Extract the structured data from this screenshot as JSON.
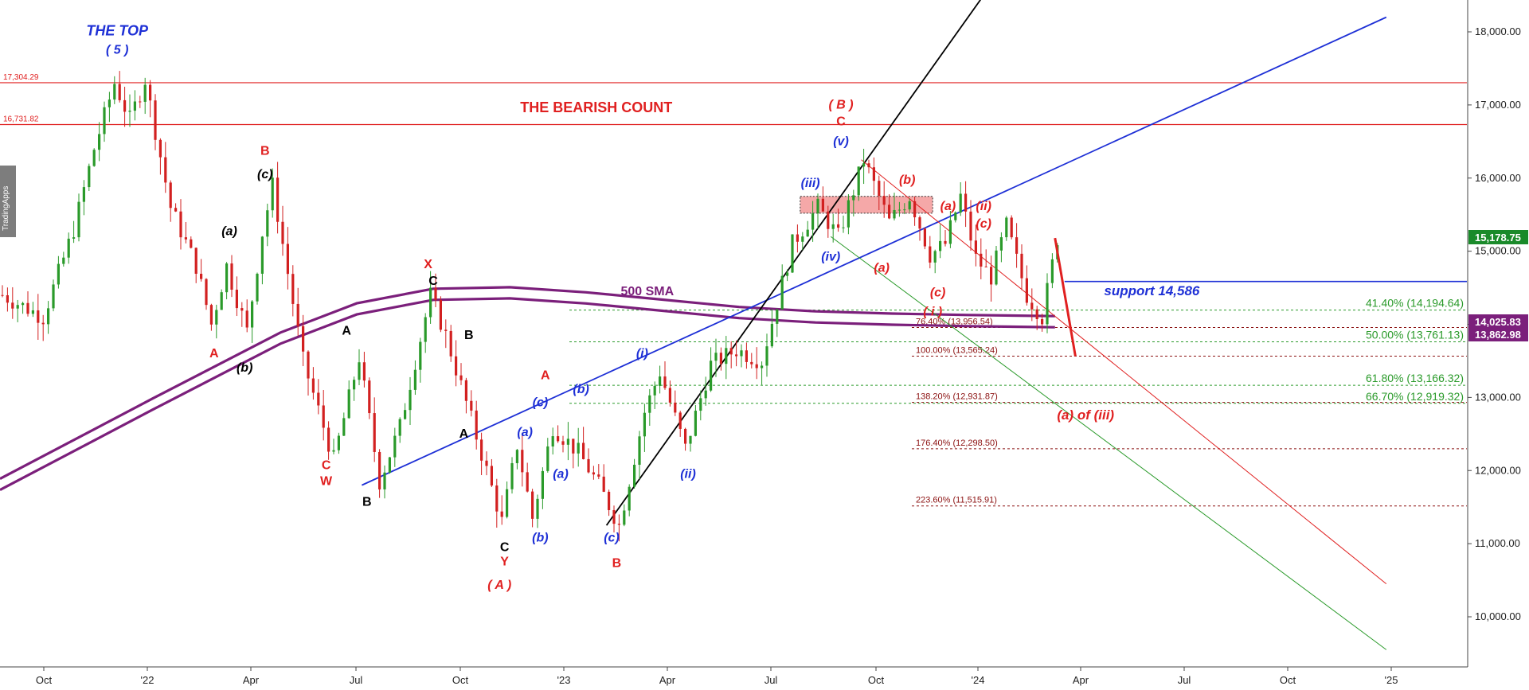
{
  "watermark": "TradingApps",
  "chart_data": {
    "type": "candlestick",
    "ylim": [
      9200,
      18400
    ],
    "y_ticks": [
      "10,000.00",
      "11,000.00",
      "12,000.00",
      "13,000.00",
      "14,000.00",
      "15,000.00",
      "16,000.00",
      "17,000.00",
      "18,000.00"
    ],
    "x_ticks": [
      "Oct",
      "'22",
      "Apr",
      "Jul",
      "Oct",
      "'23",
      "Apr",
      "Jul",
      "Oct",
      "'24",
      "Apr",
      "Jul",
      "Oct",
      "'25"
    ],
    "price_badges": [
      {
        "value": "15,178.75",
        "color": "#1a8a2a"
      },
      {
        "value": "14,025.83",
        "color": "#7b1f7b"
      },
      {
        "value": "13,862.98",
        "color": "#7b1f7b"
      }
    ],
    "candle_path": [
      [
        0,
        14400
      ],
      [
        8,
        14100
      ],
      [
        14,
        15300
      ],
      [
        18,
        16400
      ],
      [
        22,
        17300
      ],
      [
        25,
        16800
      ],
      [
        28,
        17350
      ],
      [
        33,
        15600
      ],
      [
        38,
        14800
      ],
      [
        41,
        14000
      ],
      [
        44,
        14800
      ],
      [
        48,
        13900
      ],
      [
        51,
        15250
      ],
      [
        53,
        15900
      ],
      [
        59,
        13500
      ],
      [
        65,
        12150
      ],
      [
        70,
        13550
      ],
      [
        74,
        11850
      ],
      [
        78,
        12600
      ],
      [
        84,
        14400
      ],
      [
        87,
        13850
      ],
      [
        92,
        12700
      ],
      [
        98,
        11300
      ],
      [
        101,
        12350
      ],
      [
        104,
        11350
      ],
      [
        108,
        12600
      ],
      [
        113,
        12250
      ],
      [
        117,
        11800
      ],
      [
        121,
        11250
      ],
      [
        126,
        12800
      ],
      [
        129,
        13350
      ],
      [
        134,
        12300
      ],
      [
        139,
        13450
      ],
      [
        144,
        13650
      ],
      [
        149,
        13500
      ],
      [
        155,
        15100
      ],
      [
        160,
        15600
      ],
      [
        164,
        15200
      ],
      [
        169,
        16250
      ],
      [
        174,
        15400
      ],
      [
        178,
        15750
      ],
      [
        182,
        14950
      ],
      [
        185,
        15100
      ],
      [
        188,
        15750
      ],
      [
        191,
        14900
      ],
      [
        194,
        14650
      ],
      [
        197,
        15350
      ],
      [
        201,
        14400
      ],
      [
        204,
        14100
      ],
      [
        207,
        15180
      ]
    ],
    "horizontal_levels": [
      {
        "label": "17,304.29",
        "value": 17304.29,
        "color": "#e02020",
        "style": "solid"
      },
      {
        "label": "16,731.82",
        "value": 16731.82,
        "color": "#e02020",
        "style": "solid"
      }
    ],
    "support_line": {
      "value": 14586,
      "label": "support 14,586",
      "color": "#1e30d6"
    },
    "fib_retracements": [
      {
        "label": "41.40% (14,194.64)",
        "value": 14194.64,
        "color": "#2a9a2a"
      },
      {
        "label": "50.00% (13,761.13)",
        "value": 13761.13,
        "color": "#2a9a2a"
      },
      {
        "label": "61.80% (13,166.32)",
        "value": 13166.32,
        "color": "#2a9a2a"
      },
      {
        "label": "66.70% (12,919.32)",
        "value": 12919.32,
        "color": "#2a9a2a"
      }
    ],
    "fib_extensions": [
      {
        "label": "76.40% (13,956.54)",
        "value": 13956.54,
        "color": "#8b1010"
      },
      {
        "label": "100.00% (13,565.24)",
        "value": 13565.24,
        "color": "#8b1010"
      },
      {
        "label": "138.20% (12,931.87)",
        "value": 12931.87,
        "color": "#8b1010"
      },
      {
        "label": "176.40% (12,298.50)",
        "value": 12298.5,
        "color": "#8b1010"
      },
      {
        "label": "223.60% (11,515.91)",
        "value": 11515.91,
        "color": "#8b1010"
      }
    ],
    "sma_500": {
      "label": "500 SMA",
      "color": "#7b1f7b",
      "points": [
        [
          0,
          11800
        ],
        [
          30,
          12900
        ],
        [
          55,
          13800
        ],
        [
          70,
          14200
        ],
        [
          85,
          14400
        ],
        [
          100,
          14420
        ],
        [
          115,
          14350
        ],
        [
          130,
          14250
        ],
        [
          145,
          14150
        ],
        [
          160,
          14090
        ],
        [
          175,
          14060
        ],
        [
          190,
          14040
        ],
        [
          207,
          14025
        ]
      ]
    },
    "trendlines": [
      {
        "name": "blue",
        "color": "#1e30d6",
        "from": [
          71,
          11800
        ],
        "to": [
          272,
          18200
        ]
      },
      {
        "name": "black",
        "color": "#000000",
        "from": [
          119,
          11250
        ],
        "to": [
          193,
          18500
        ]
      },
      {
        "name": "red-channel",
        "color": "#e02020",
        "from": [
          169,
          16250
        ],
        "to": [
          272,
          10450
        ]
      },
      {
        "name": "green-channel",
        "color": "#2a9a2a",
        "from": [
          163,
          15200
        ],
        "to": [
          272,
          9550
        ]
      }
    ],
    "projection": {
      "from": [
        207,
        15180
      ],
      "to": [
        211,
        13565
      ],
      "color": "#e02020"
    },
    "labels": [
      {
        "text": "THE TOP",
        "color": "#1e30d6",
        "pos": [
          23,
          17950
        ]
      },
      {
        "text": "( 5 )",
        "color": "#1e30d6",
        "pos": [
          23,
          17700
        ]
      },
      {
        "text": "THE BEARISH COUNT",
        "color": "#e02020",
        "pos": [
          117,
          16900
        ]
      },
      {
        "text": "( B )",
        "color": "#e02020",
        "pos": [
          165,
          16950
        ]
      },
      {
        "text": "C",
        "color": "#e02020",
        "pos": [
          165,
          16720
        ]
      },
      {
        "text": "(v)",
        "color": "#1e30d6",
        "pos": [
          165,
          16450
        ]
      },
      {
        "text": "(iii)",
        "color": "#1e30d6",
        "pos": [
          159,
          15880
        ]
      },
      {
        "text": "(iv)",
        "color": "#1e30d6",
        "pos": [
          163,
          14870
        ]
      },
      {
        "text": "(b)",
        "color": "#e02020",
        "pos": [
          178,
          15920
        ]
      },
      {
        "text": "(a)",
        "color": "#e02020",
        "pos": [
          186,
          15560
        ]
      },
      {
        "text": "(ii)",
        "color": "#e02020",
        "pos": [
          193,
          15560
        ]
      },
      {
        "text": "(c)",
        "color": "#e02020",
        "pos": [
          193,
          15320
        ]
      },
      {
        "text": "(a)",
        "color": "#e02020",
        "pos": [
          173,
          14720
        ]
      },
      {
        "text": "(c)",
        "color": "#e02020",
        "pos": [
          184,
          14380
        ]
      },
      {
        "text": "( i )",
        "color": "#e02020",
        "pos": [
          183,
          14120
        ]
      },
      {
        "text": "(a) of (iii)",
        "color": "#e02020",
        "pos": [
          213,
          12700
        ]
      },
      {
        "text": "support 14,586",
        "color": "#1e30d6",
        "pos": [
          226,
          14400
        ]
      },
      {
        "text": "500 SMA",
        "color": "#7b1f7b",
        "pos": [
          127,
          14400
        ]
      },
      {
        "text": "B",
        "color": "#e02020",
        "pos": [
          52,
          16320
        ]
      },
      {
        "text": "(c)",
        "color": "#000000",
        "pos": [
          52,
          16000
        ]
      },
      {
        "text": "(a)",
        "color": "#000000",
        "pos": [
          45,
          15220
        ]
      },
      {
        "text": "A",
        "color": "#e02020",
        "pos": [
          42,
          13550
        ]
      },
      {
        "text": "(b)",
        "color": "#000000",
        "pos": [
          48,
          13350
        ]
      },
      {
        "text": "X",
        "color": "#e02020",
        "pos": [
          84,
          14770
        ]
      },
      {
        "text": "C",
        "color": "#000000",
        "pos": [
          85,
          14540
        ]
      },
      {
        "text": "A",
        "color": "#000000",
        "pos": [
          68,
          13860
        ]
      },
      {
        "text": "C",
        "color": "#e02020",
        "pos": [
          64,
          12020
        ]
      },
      {
        "text": "W",
        "color": "#e02020",
        "pos": [
          64,
          11800
        ]
      },
      {
        "text": "B",
        "color": "#000000",
        "pos": [
          72,
          11520
        ]
      },
      {
        "text": "B",
        "color": "#000000",
        "pos": [
          92,
          13800
        ]
      },
      {
        "text": "A",
        "color": "#000000",
        "pos": [
          91,
          12450
        ]
      },
      {
        "text": "A",
        "color": "#e02020",
        "pos": [
          107,
          13250
        ]
      },
      {
        "text": "(c)",
        "color": "#1e30d6",
        "pos": [
          106,
          12880
        ]
      },
      {
        "text": "(b)",
        "color": "#1e30d6",
        "pos": [
          114,
          13060
        ]
      },
      {
        "text": "(a)",
        "color": "#1e30d6",
        "pos": [
          103,
          12470
        ]
      },
      {
        "text": "(a)",
        "color": "#1e30d6",
        "pos": [
          110,
          11900
        ]
      },
      {
        "text": "(i)",
        "color": "#1e30d6",
        "pos": [
          126,
          13550
        ]
      },
      {
        "text": "(ii)",
        "color": "#1e30d6",
        "pos": [
          135,
          11900
        ]
      },
      {
        "text": "(b)",
        "color": "#1e30d6",
        "pos": [
          106,
          11030
        ]
      },
      {
        "text": "C",
        "color": "#000000",
        "pos": [
          99,
          10900
        ]
      },
      {
        "text": "Y",
        "color": "#e02020",
        "pos": [
          99,
          10700
        ]
      },
      {
        "text": "( A )",
        "color": "#e02020",
        "pos": [
          98,
          10380
        ]
      },
      {
        "text": "(c)",
        "color": "#1e30d6",
        "pos": [
          120,
          11030
        ]
      },
      {
        "text": "B",
        "color": "#e02020",
        "pos": [
          121,
          10680
        ]
      }
    ]
  }
}
